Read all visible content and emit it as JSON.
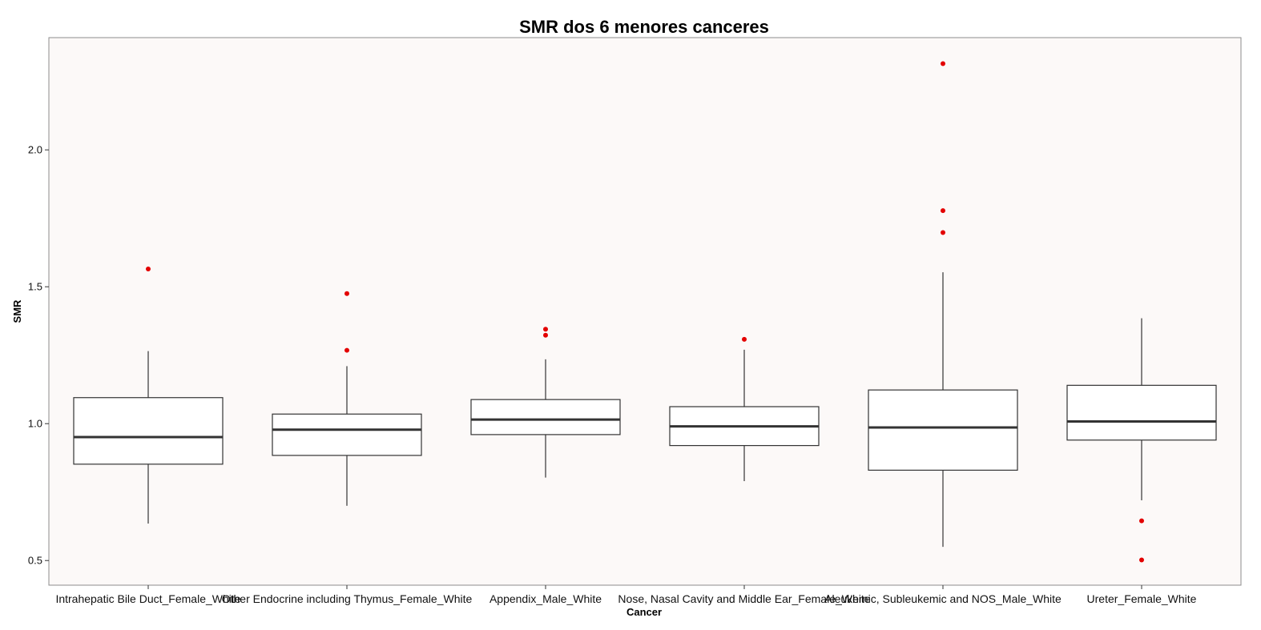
{
  "chart_data": {
    "type": "boxplot",
    "title": "SMR dos 6 menores canceres",
    "xlabel": "Cancer",
    "ylabel": "SMR",
    "ylim": [
      0.41,
      2.41
    ],
    "yticks": [
      0.5,
      1.0,
      1.5,
      2.0
    ],
    "ytick_labels": [
      "0.5",
      "1.0",
      "1.5",
      "2.0"
    ],
    "grid": false,
    "colors": {
      "panel": "#fcf9f8",
      "box_fill": "#ffffff",
      "stroke": "#333333",
      "outlier": "#e30000"
    },
    "categories": [
      "Intrahepatic Bile Duct_Female_White",
      "Other Endocrine including Thymus_Female_White",
      "Appendix_Male_White",
      "Nose, Nasal Cavity and Middle Ear_Female_White",
      "Aleukemic, Subleukemic and NOS_Male_White",
      "Ureter_Female_White"
    ],
    "boxes": [
      {
        "whisker_low": 0.635,
        "q1": 0.852,
        "median": 0.951,
        "q3": 1.095,
        "whisker_high": 1.265,
        "outliers": [
          1.565
        ]
      },
      {
        "whisker_low": 0.7,
        "q1": 0.884,
        "median": 0.978,
        "q3": 1.035,
        "whisker_high": 1.21,
        "outliers": [
          1.268,
          1.475
        ]
      },
      {
        "whisker_low": 0.803,
        "q1": 0.96,
        "median": 1.015,
        "q3": 1.088,
        "whisker_high": 1.235,
        "outliers": [
          1.323,
          1.345
        ]
      },
      {
        "whisker_low": 0.79,
        "q1": 0.92,
        "median": 0.99,
        "q3": 1.062,
        "whisker_high": 1.27,
        "outliers": [
          1.308
        ]
      },
      {
        "whisker_low": 0.55,
        "q1": 0.83,
        "median": 0.986,
        "q3": 1.123,
        "whisker_high": 1.553,
        "outliers": [
          1.698,
          1.778,
          2.315
        ]
      },
      {
        "whisker_low": 0.72,
        "q1": 0.94,
        "median": 1.008,
        "q3": 1.14,
        "whisker_high": 1.385,
        "outliers": [
          0.645,
          0.502
        ]
      }
    ]
  }
}
